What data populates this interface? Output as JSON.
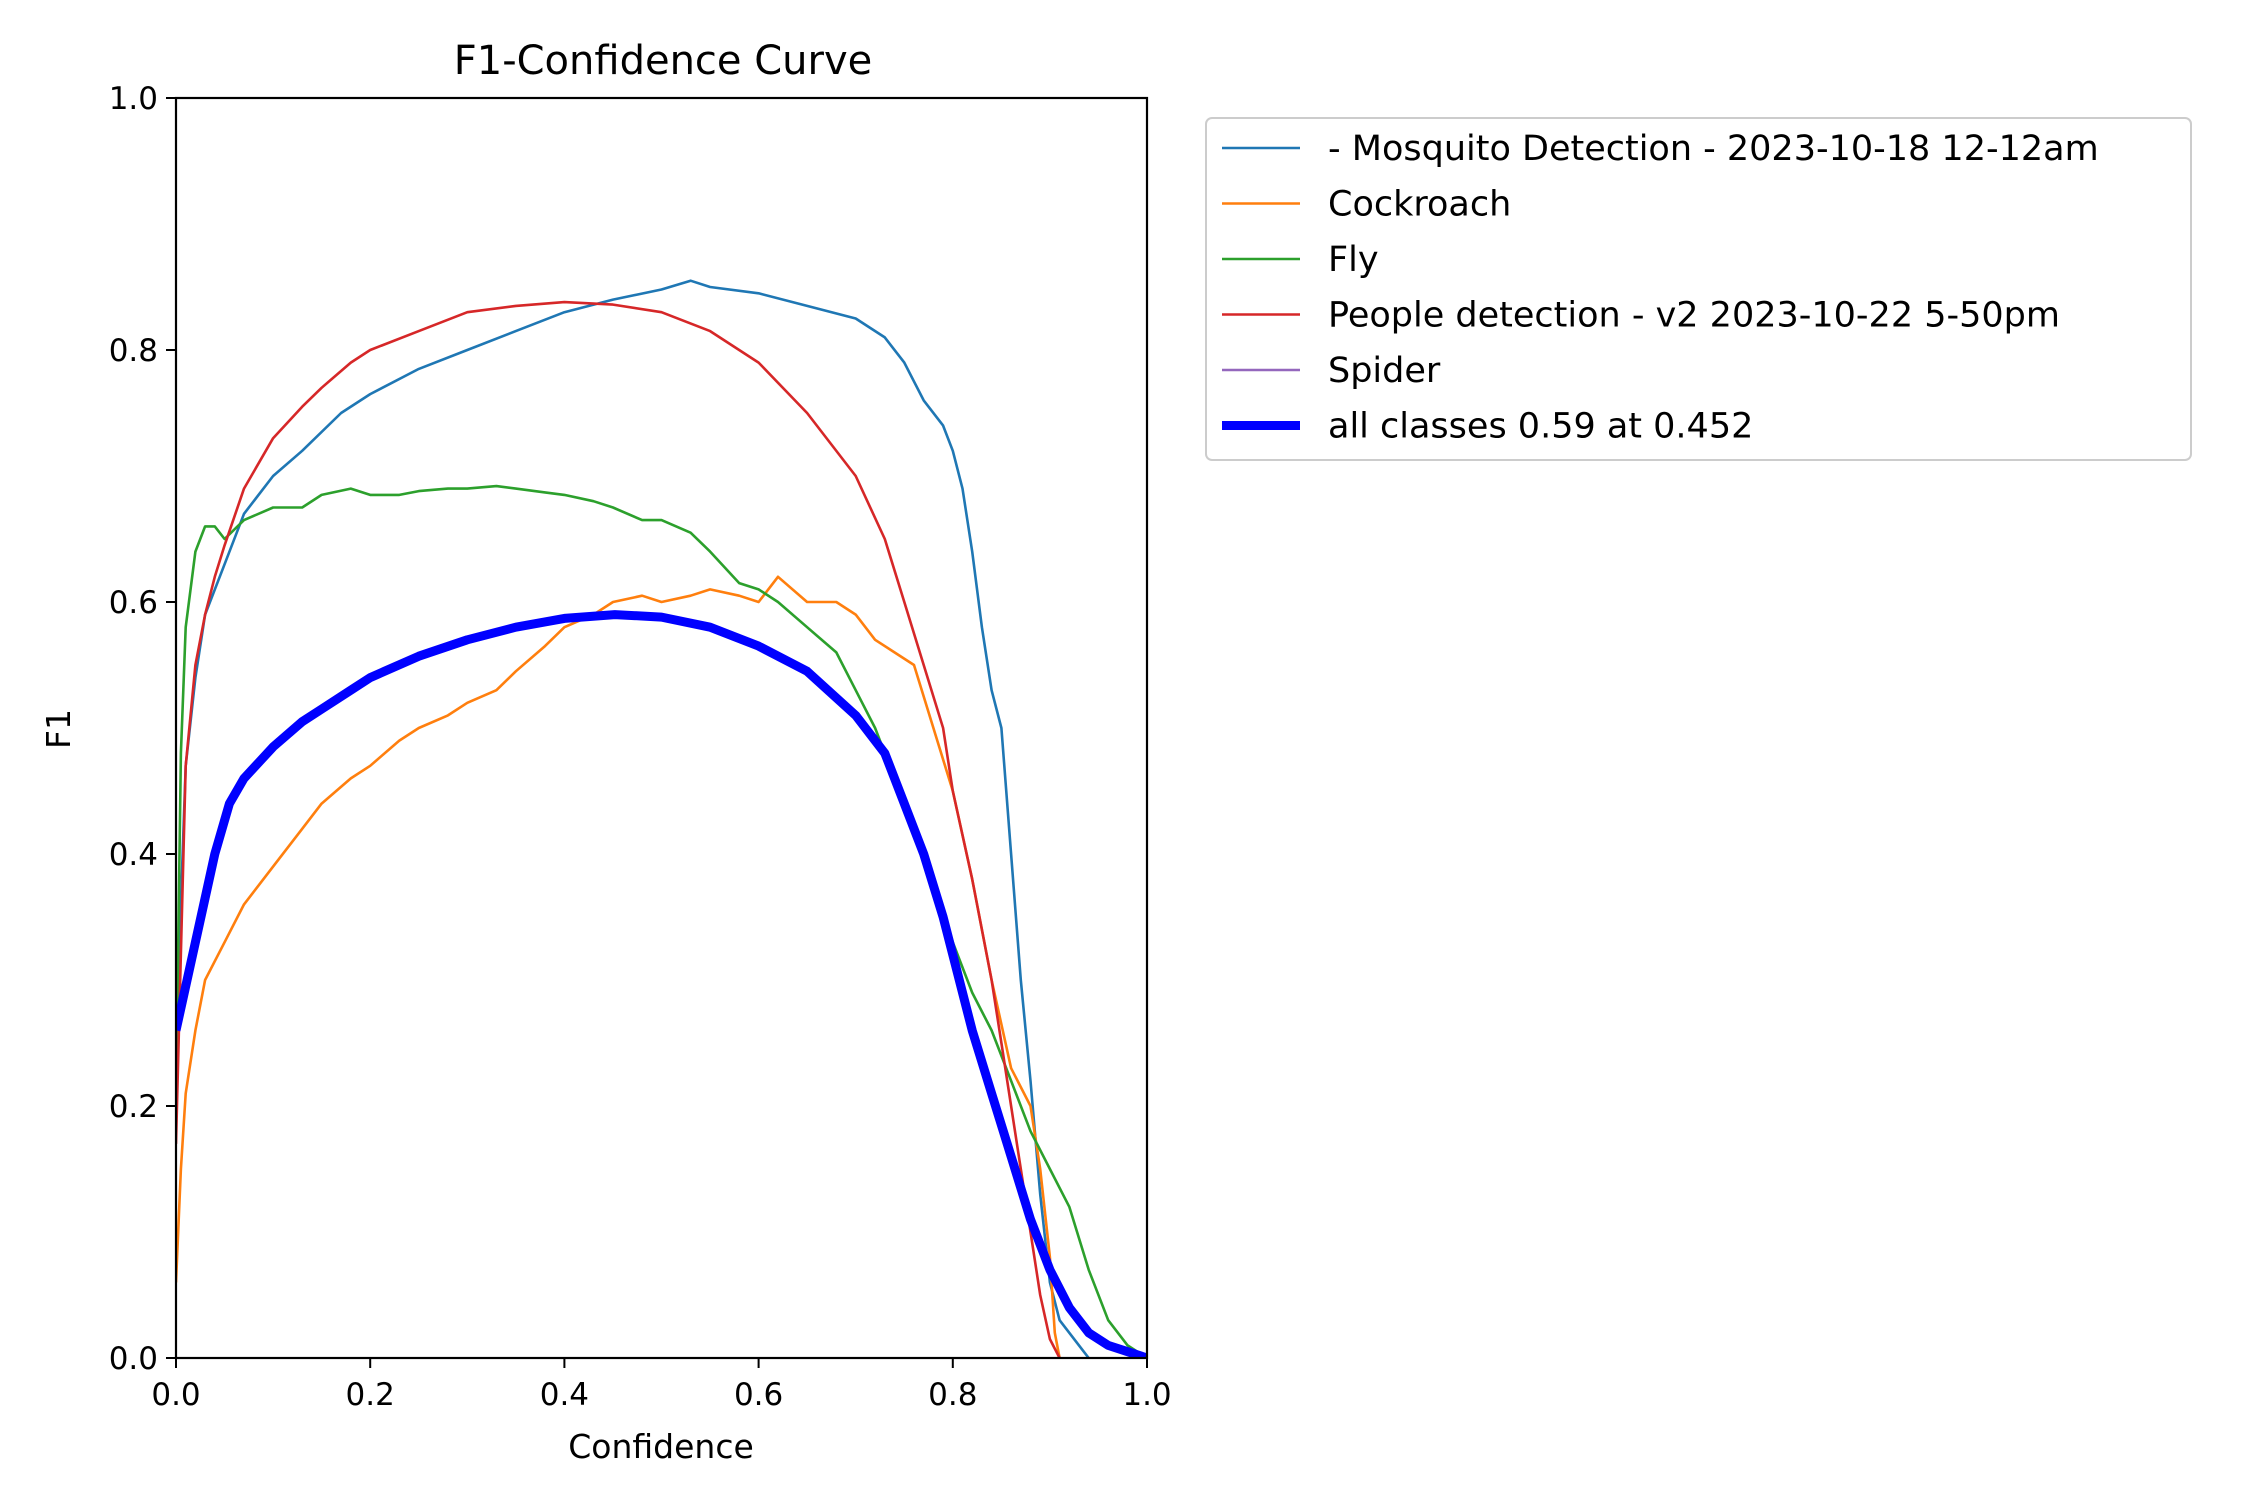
{
  "chart_data": {
    "type": "line",
    "title": "F1-Confidence Curve",
    "xlabel": "Confidence",
    "ylabel": "F1",
    "xlim": [
      0.0,
      1.0
    ],
    "ylim": [
      0.0,
      1.0
    ],
    "xticks": [
      "0.0",
      "0.2",
      "0.4",
      "0.6",
      "0.8",
      "1.0"
    ],
    "yticks": [
      "0.0",
      "0.2",
      "0.4",
      "0.6",
      "0.8",
      "1.0"
    ],
    "grid": false,
    "legend_position": "outside-upper-right",
    "series": [
      {
        "name": "- Mosquito Detection - 2023-10-18 12-12am",
        "color": "#1f77b4",
        "bold": false,
        "x": [
          0.0,
          0.01,
          0.02,
          0.03,
          0.05,
          0.07,
          0.1,
          0.13,
          0.17,
          0.2,
          0.25,
          0.3,
          0.35,
          0.4,
          0.45,
          0.5,
          0.53,
          0.55,
          0.6,
          0.65,
          0.7,
          0.73,
          0.75,
          0.77,
          0.79,
          0.8,
          0.81,
          0.82,
          0.83,
          0.84,
          0.85,
          0.86,
          0.87,
          0.88,
          0.89,
          0.9,
          0.91,
          0.92,
          0.93,
          0.94
        ],
        "y": [
          0.25,
          0.47,
          0.54,
          0.59,
          0.63,
          0.67,
          0.7,
          0.72,
          0.75,
          0.765,
          0.785,
          0.8,
          0.815,
          0.83,
          0.84,
          0.848,
          0.855,
          0.85,
          0.845,
          0.835,
          0.825,
          0.81,
          0.79,
          0.76,
          0.74,
          0.72,
          0.69,
          0.64,
          0.58,
          0.53,
          0.5,
          0.4,
          0.3,
          0.22,
          0.13,
          0.06,
          0.03,
          0.02,
          0.01,
          0.0
        ]
      },
      {
        "name": "Cockroach",
        "color": "#ff7f0e",
        "bold": false,
        "x": [
          0.0,
          0.005,
          0.01,
          0.02,
          0.03,
          0.05,
          0.07,
          0.1,
          0.13,
          0.15,
          0.18,
          0.2,
          0.23,
          0.25,
          0.28,
          0.3,
          0.33,
          0.35,
          0.38,
          0.4,
          0.43,
          0.45,
          0.48,
          0.5,
          0.53,
          0.55,
          0.58,
          0.6,
          0.62,
          0.65,
          0.68,
          0.7,
          0.72,
          0.74,
          0.76,
          0.78,
          0.8,
          0.82,
          0.84,
          0.86,
          0.88,
          0.89,
          0.9,
          0.905,
          0.91
        ],
        "y": [
          0.06,
          0.15,
          0.21,
          0.26,
          0.3,
          0.33,
          0.36,
          0.39,
          0.42,
          0.44,
          0.46,
          0.47,
          0.49,
          0.5,
          0.51,
          0.52,
          0.53,
          0.545,
          0.565,
          0.58,
          0.59,
          0.6,
          0.605,
          0.6,
          0.605,
          0.61,
          0.605,
          0.6,
          0.62,
          0.6,
          0.6,
          0.59,
          0.57,
          0.56,
          0.55,
          0.5,
          0.45,
          0.38,
          0.3,
          0.23,
          0.2,
          0.15,
          0.08,
          0.02,
          0.0
        ]
      },
      {
        "name": "Fly",
        "color": "#2ca02c",
        "bold": false,
        "x": [
          0.0,
          0.005,
          0.01,
          0.02,
          0.03,
          0.04,
          0.05,
          0.07,
          0.1,
          0.13,
          0.15,
          0.18,
          0.2,
          0.23,
          0.25,
          0.28,
          0.3,
          0.33,
          0.35,
          0.38,
          0.4,
          0.43,
          0.45,
          0.48,
          0.5,
          0.53,
          0.55,
          0.58,
          0.6,
          0.62,
          0.65,
          0.68,
          0.7,
          0.72,
          0.74,
          0.76,
          0.78,
          0.8,
          0.82,
          0.84,
          0.86,
          0.88,
          0.9,
          0.92,
          0.94,
          0.96,
          0.98,
          1.0
        ],
        "y": [
          0.2,
          0.48,
          0.58,
          0.64,
          0.66,
          0.66,
          0.65,
          0.665,
          0.675,
          0.675,
          0.685,
          0.69,
          0.685,
          0.685,
          0.688,
          0.69,
          0.69,
          0.692,
          0.69,
          0.687,
          0.685,
          0.68,
          0.675,
          0.665,
          0.665,
          0.655,
          0.64,
          0.615,
          0.61,
          0.6,
          0.58,
          0.56,
          0.53,
          0.5,
          0.46,
          0.42,
          0.38,
          0.33,
          0.29,
          0.26,
          0.22,
          0.18,
          0.15,
          0.12,
          0.07,
          0.03,
          0.01,
          0.0
        ]
      },
      {
        "name": "People detection - v2 2023-10-22 5-50pm",
        "color": "#d62728",
        "bold": false,
        "x": [
          0.0,
          0.01,
          0.02,
          0.03,
          0.04,
          0.05,
          0.07,
          0.1,
          0.13,
          0.15,
          0.18,
          0.2,
          0.25,
          0.3,
          0.35,
          0.4,
          0.45,
          0.5,
          0.55,
          0.6,
          0.65,
          0.7,
          0.73,
          0.75,
          0.77,
          0.79,
          0.8,
          0.82,
          0.84,
          0.85,
          0.86,
          0.87,
          0.88,
          0.89,
          0.9,
          0.91
        ],
        "y": [
          0.17,
          0.47,
          0.55,
          0.59,
          0.62,
          0.645,
          0.69,
          0.73,
          0.755,
          0.77,
          0.79,
          0.8,
          0.815,
          0.83,
          0.835,
          0.838,
          0.836,
          0.83,
          0.815,
          0.79,
          0.75,
          0.7,
          0.65,
          0.6,
          0.55,
          0.5,
          0.45,
          0.38,
          0.3,
          0.25,
          0.2,
          0.15,
          0.1,
          0.05,
          0.015,
          0.0
        ]
      },
      {
        "name": "Spider",
        "color": "#9467bd",
        "bold": false,
        "x": [],
        "y": []
      },
      {
        "name": "all classes 0.59 at 0.452",
        "color": "#0000ff",
        "bold": true,
        "x": [
          0.0,
          0.02,
          0.04,
          0.055,
          0.07,
          0.1,
          0.13,
          0.15,
          0.18,
          0.2,
          0.25,
          0.3,
          0.35,
          0.4,
          0.452,
          0.5,
          0.55,
          0.6,
          0.65,
          0.7,
          0.73,
          0.75,
          0.77,
          0.79,
          0.8,
          0.82,
          0.84,
          0.86,
          0.88,
          0.9,
          0.92,
          0.94,
          0.96,
          0.98,
          1.0
        ],
        "y": [
          0.26,
          0.33,
          0.4,
          0.44,
          0.46,
          0.485,
          0.505,
          0.515,
          0.53,
          0.54,
          0.557,
          0.57,
          0.58,
          0.587,
          0.59,
          0.588,
          0.58,
          0.565,
          0.545,
          0.51,
          0.48,
          0.44,
          0.4,
          0.35,
          0.32,
          0.26,
          0.21,
          0.16,
          0.11,
          0.07,
          0.04,
          0.02,
          0.01,
          0.005,
          0.0
        ]
      }
    ]
  }
}
